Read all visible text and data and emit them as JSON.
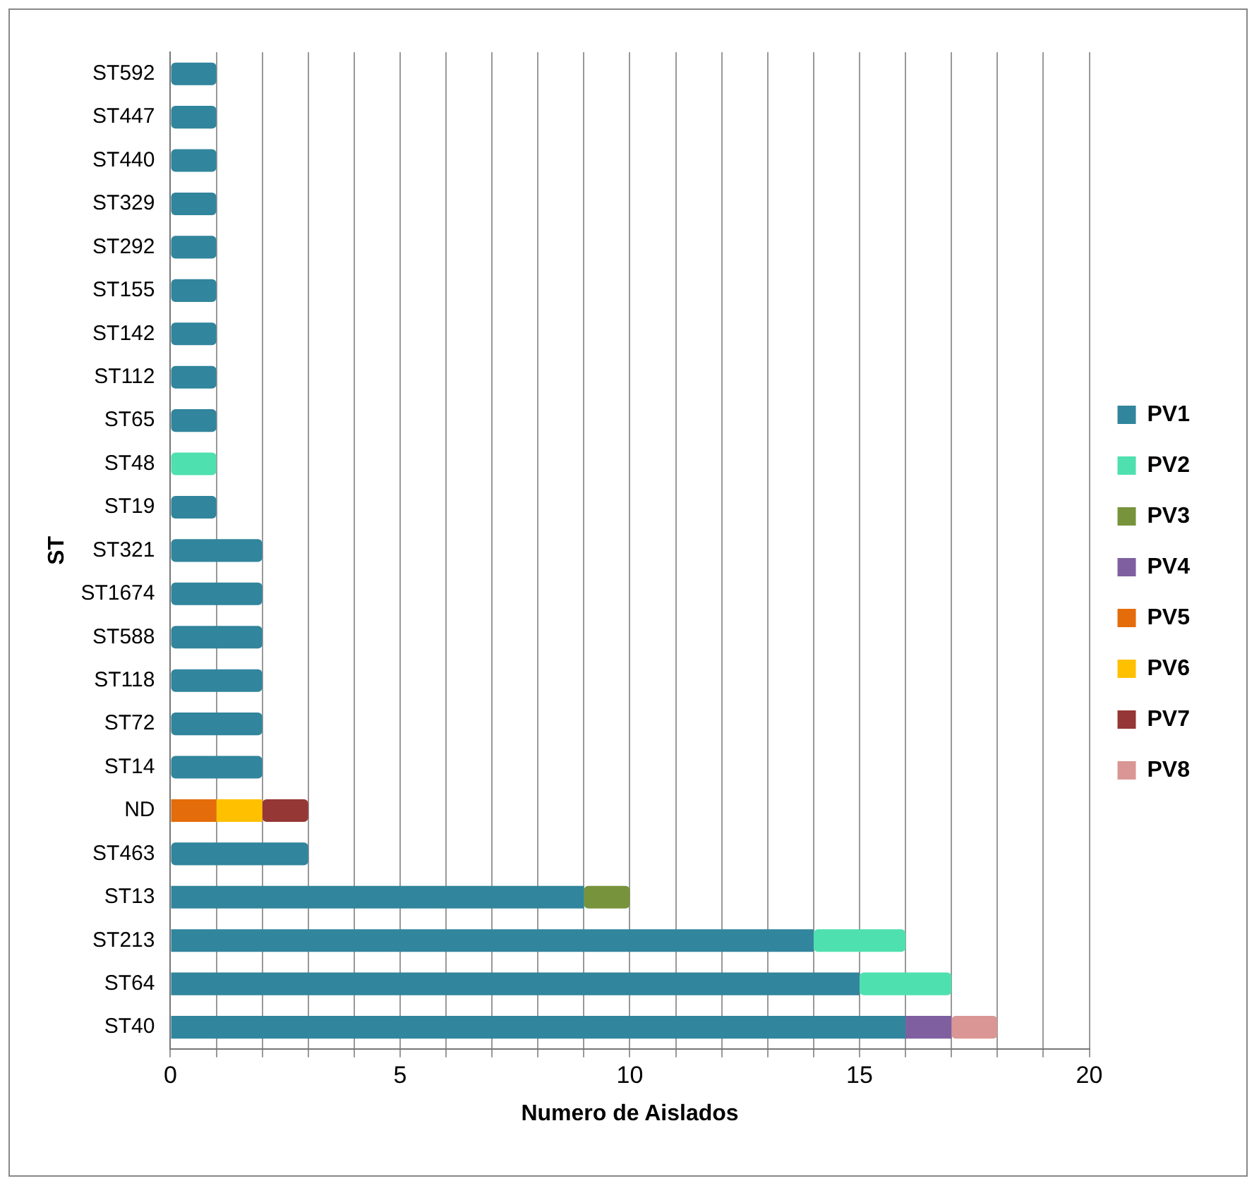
{
  "chart_data": {
    "type": "bar",
    "orientation": "horizontal",
    "stacked": true,
    "xlabel": "Numero de Aislados",
    "ylabel": "ST",
    "categories": [
      "ST592",
      "ST447",
      "ST440",
      "ST329",
      "ST292",
      "ST155",
      "ST142",
      "ST112",
      "ST65",
      "ST48",
      "ST19",
      "ST321",
      "ST1674",
      "ST588",
      "ST118",
      "ST72",
      "ST14",
      "ND",
      "ST463",
      "ST13",
      "ST213",
      "ST64",
      "ST40"
    ],
    "series": [
      {
        "name": "PV1",
        "color": "#31859c",
        "values": [
          1,
          1,
          1,
          1,
          1,
          1,
          1,
          1,
          1,
          null,
          1,
          2,
          2,
          2,
          2,
          2,
          2,
          null,
          3,
          9,
          14,
          15,
          16
        ]
      },
      {
        "name": "PV2",
        "color": "#4fe0b0",
        "values": [
          null,
          null,
          null,
          null,
          null,
          null,
          null,
          null,
          null,
          1,
          null,
          null,
          null,
          null,
          null,
          null,
          null,
          null,
          null,
          null,
          2,
          2,
          null
        ]
      },
      {
        "name": "PV3",
        "color": "#77933c",
        "values": [
          null,
          null,
          null,
          null,
          null,
          null,
          null,
          null,
          null,
          null,
          null,
          null,
          null,
          null,
          null,
          null,
          null,
          null,
          null,
          1,
          null,
          null,
          null
        ]
      },
      {
        "name": "PV4",
        "color": "#7f5fa0",
        "values": [
          null,
          null,
          null,
          null,
          null,
          null,
          null,
          null,
          null,
          null,
          null,
          null,
          null,
          null,
          null,
          null,
          null,
          null,
          null,
          null,
          null,
          null,
          1
        ]
      },
      {
        "name": "PV5",
        "color": "#e46c0a",
        "values": [
          null,
          null,
          null,
          null,
          null,
          null,
          null,
          null,
          null,
          null,
          null,
          null,
          null,
          null,
          null,
          null,
          null,
          1,
          null,
          null,
          null,
          null,
          null
        ]
      },
      {
        "name": "PV6",
        "color": "#ffc000",
        "values": [
          null,
          null,
          null,
          null,
          null,
          null,
          null,
          null,
          null,
          null,
          null,
          null,
          null,
          null,
          null,
          null,
          null,
          1,
          null,
          null,
          null,
          null,
          null
        ]
      },
      {
        "name": "PV7",
        "color": "#953735",
        "values": [
          null,
          null,
          null,
          null,
          null,
          null,
          null,
          null,
          null,
          null,
          null,
          null,
          null,
          null,
          null,
          null,
          null,
          1,
          null,
          null,
          null,
          null,
          null
        ]
      },
      {
        "name": "PV8",
        "color": "#d99694",
        "values": [
          null,
          null,
          null,
          null,
          null,
          null,
          null,
          null,
          null,
          null,
          null,
          null,
          null,
          null,
          null,
          null,
          null,
          null,
          null,
          null,
          null,
          null,
          1
        ]
      }
    ],
    "xlim": [
      0,
      20
    ],
    "xticks": [
      0,
      {
        "value": 1,
        "label": null
      },
      {
        "value": 2,
        "label": null
      },
      {
        "value": 3,
        "label": null
      },
      {
        "value": 4,
        "label": null
      },
      5,
      {
        "value": 6,
        "label": null
      },
      {
        "value": 7,
        "label": null
      },
      {
        "value": 8,
        "label": null
      },
      {
        "value": 9,
        "label": null
      },
      10,
      {
        "value": 11,
        "label": null
      },
      {
        "value": 12,
        "label": null
      },
      {
        "value": 13,
        "label": null
      },
      {
        "value": 14,
        "label": null
      },
      15,
      {
        "value": 16,
        "label": null
      },
      {
        "value": 17,
        "label": null
      },
      {
        "value": 18,
        "label": null
      },
      {
        "value": 19,
        "label": null
      },
      20
    ],
    "grid": "x",
    "legend": "right"
  }
}
